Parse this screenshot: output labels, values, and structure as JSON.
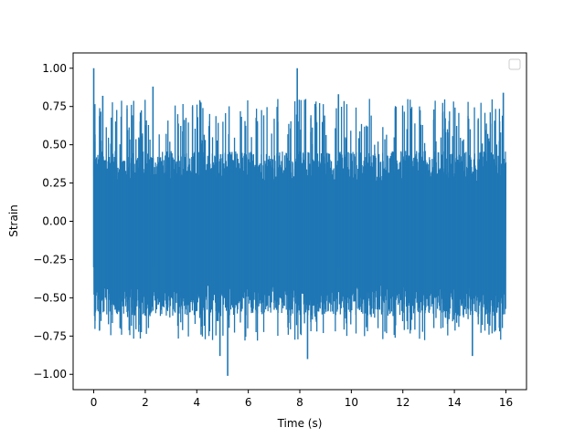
{
  "chart_data": {
    "type": "line",
    "title": "",
    "xlabel": "Time (s)",
    "ylabel": "Strain",
    "xlim": [
      -0.8,
      16.8
    ],
    "ylim": [
      -1.1,
      1.1
    ],
    "x_ticks": [
      0,
      2,
      4,
      6,
      8,
      10,
      12,
      14,
      16
    ],
    "x_tick_labels": [
      "0",
      "2",
      "4",
      "6",
      "8",
      "10",
      "12",
      "14",
      "16"
    ],
    "y_ticks": [
      1.0,
      0.75,
      0.5,
      0.25,
      0.0,
      -0.25,
      -0.5,
      -0.75,
      -1.0
    ],
    "y_tick_labels": [
      "1.00",
      "0.75",
      "0.50",
      "0.25",
      "0.00",
      "−0.25",
      "−0.50",
      "−0.75",
      "−1.00"
    ],
    "grid": false,
    "legend": {
      "placement": "top-right",
      "entries": []
    },
    "series": [
      {
        "color": "#1f77b4",
        "x_range": [
          0,
          16
        ],
        "envelope_bins": 160,
        "noise_amplitude_typical": 0.45,
        "max_value": 1.0,
        "min_value": -1.01,
        "peaks": [
          {
            "x": 0.0,
            "y": 1.0
          },
          {
            "x": 7.9,
            "y": 1.0
          },
          {
            "x": 5.2,
            "y": -1.01
          },
          {
            "x": 0.35,
            "y": 0.82
          },
          {
            "x": 2.3,
            "y": 0.88
          },
          {
            "x": 4.9,
            "y": -0.88
          },
          {
            "x": 8.3,
            "y": -0.9
          },
          {
            "x": 9.5,
            "y": 0.83
          },
          {
            "x": 14.7,
            "y": -0.88
          },
          {
            "x": 15.9,
            "y": 0.84
          }
        ]
      }
    ]
  }
}
